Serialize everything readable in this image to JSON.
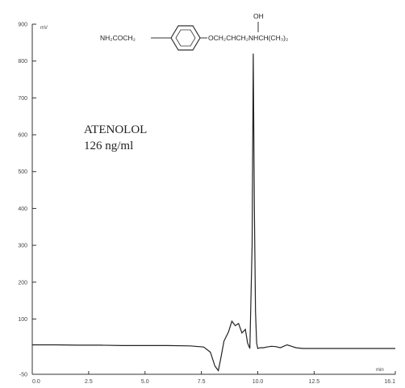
{
  "chart_data": {
    "type": "line",
    "title": "",
    "annotation_lines": [
      "ATENOLOL",
      "126 ng/ml"
    ],
    "structure": {
      "left_group": "NH₂COCH₂",
      "right_group": "OCH₂CHCH₂NHCH(CH₃)₂",
      "hydroxyl": "OH"
    },
    "y_unit": "mV",
    "x_unit": "min",
    "xlim": [
      0,
      16.1
    ],
    "ylim": [
      -50,
      900
    ],
    "x_ticks": [
      "0.0",
      "2.5",
      "5.0",
      "7.5",
      "10.0",
      "12.5",
      "16.1"
    ],
    "x_tick_values": [
      0,
      2.5,
      5.0,
      7.5,
      10.0,
      12.5,
      16.1
    ],
    "y_ticks": [
      "900",
      "800",
      "700",
      "600",
      "500",
      "400",
      "300",
      "200",
      "100",
      "-50"
    ],
    "y_tick_values": [
      900,
      800,
      700,
      600,
      500,
      400,
      300,
      200,
      100,
      -50
    ],
    "grid": false,
    "series": [
      {
        "x": [
          0,
          1,
          2,
          3,
          4,
          5,
          6,
          7,
          7.6,
          7.9,
          8.1,
          8.25,
          8.35,
          8.5,
          8.7,
          8.85,
          9.0,
          9.15,
          9.3,
          9.45,
          9.55,
          9.65,
          9.75,
          9.8,
          9.85,
          9.9,
          9.95,
          10.0,
          10.1,
          10.25,
          10.4,
          10.6,
          10.8,
          11.0,
          11.3,
          11.5,
          11.7,
          12,
          13,
          14,
          15,
          16.1
        ],
        "y": [
          30,
          30,
          29,
          29,
          28,
          28,
          28,
          27,
          24,
          10,
          -28,
          -40,
          -10,
          40,
          65,
          94,
          82,
          88,
          62,
          72,
          35,
          20,
          300,
          820,
          400,
          120,
          35,
          20,
          22,
          22,
          24,
          26,
          25,
          22,
          30,
          26,
          22,
          20,
          20,
          20,
          20,
          20
        ]
      }
    ]
  }
}
